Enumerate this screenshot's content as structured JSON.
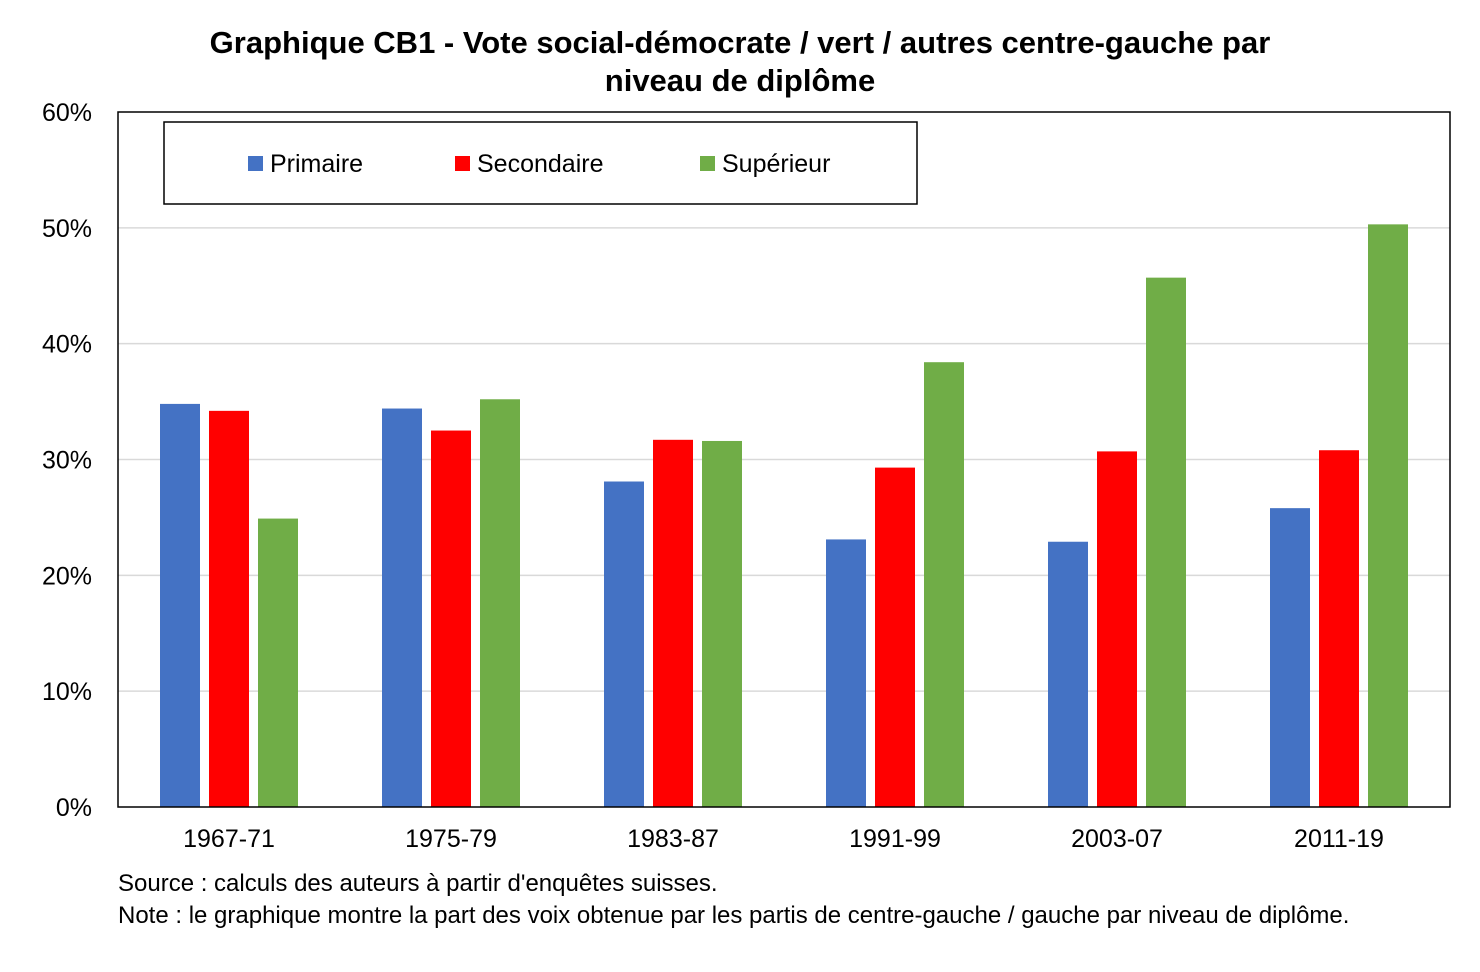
{
  "title_lines": [
    "Graphique CB1 - Vote social-démocrate / vert / autres centre-gauche par",
    "niveau de diplôme"
  ],
  "colors": {
    "Primaire": "#4472C4",
    "Secondaire": "#FF0000",
    "Supérieur": "#70AD47"
  },
  "chart_data": {
    "type": "bar",
    "title": "Graphique CB1 - Vote social-démocrate / vert / autres centre-gauche par niveau de diplôme",
    "categories": [
      "1967-71",
      "1975-79",
      "1983-87",
      "1991-99",
      "2003-07",
      "2011-19"
    ],
    "series": [
      {
        "name": "Primaire",
        "values": [
          0.348,
          0.344,
          0.281,
          0.231,
          0.229,
          0.258
        ]
      },
      {
        "name": "Secondaire",
        "values": [
          0.342,
          0.325,
          0.317,
          0.293,
          0.307,
          0.308
        ]
      },
      {
        "name": "Supérieur",
        "values": [
          0.249,
          0.352,
          0.316,
          0.384,
          0.457,
          0.503
        ]
      }
    ],
    "ylim": [
      0,
      0.6
    ],
    "yticks": [
      "0%",
      "10%",
      "20%",
      "30%",
      "40%",
      "50%",
      "60%"
    ],
    "grid": true,
    "legend": "top-left, inside plot, framed, horizontal"
  },
  "notes": {
    "source": "Source : calculs des auteurs à partir d'enquêtes suisses.",
    "note": "Note : le graphique montre la part des voix obtenue par les partis de centre-gauche / gauche par niveau de diplôme."
  }
}
